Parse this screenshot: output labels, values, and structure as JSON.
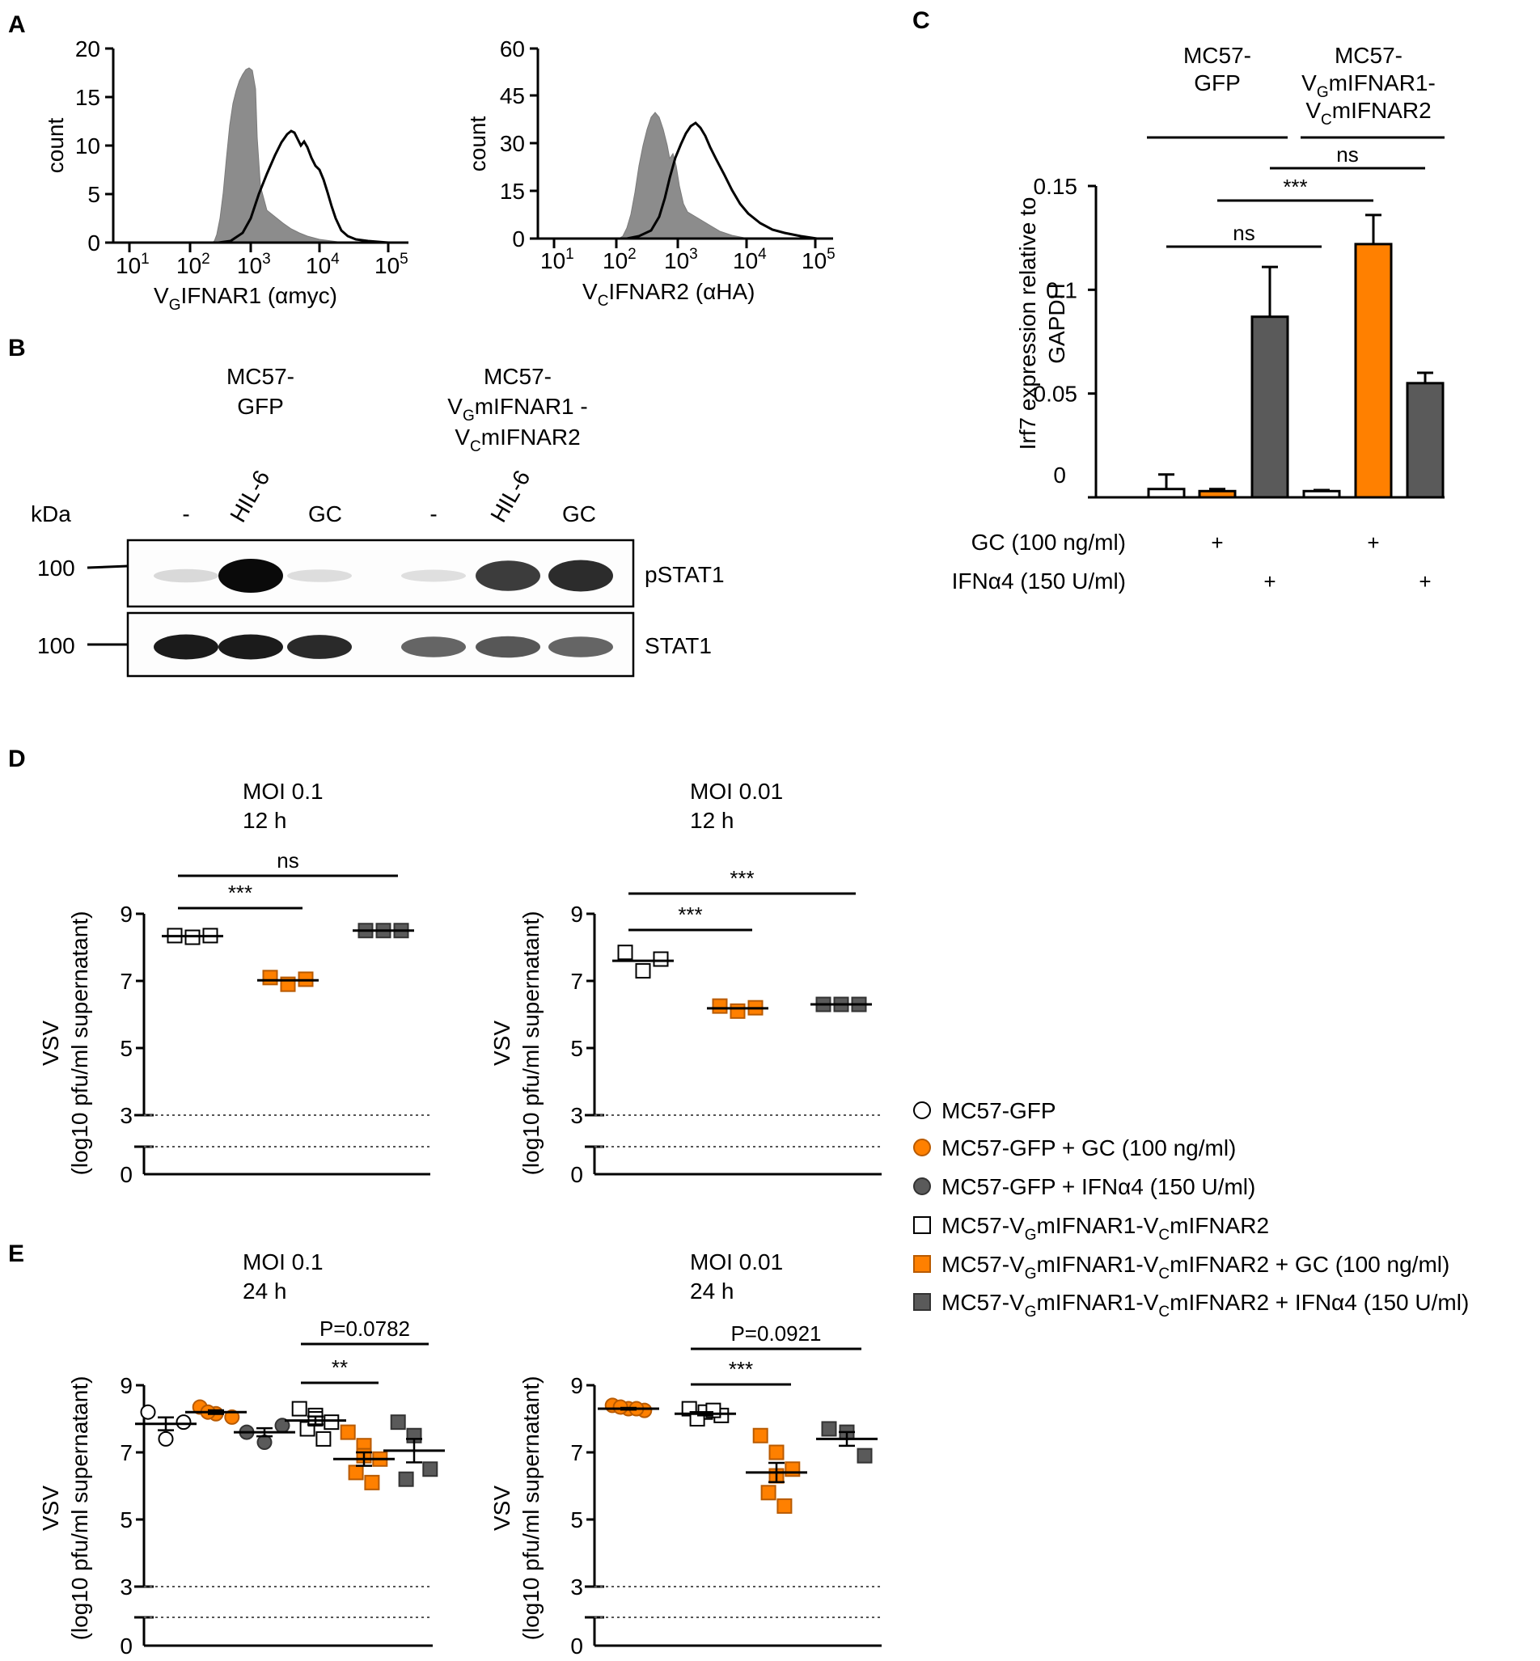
{
  "colors": {
    "orange": "#ff8000",
    "gray": "#5a5a5a",
    "fill_gray": "#8c8c8c",
    "black": "#000000"
  },
  "panels": {
    "A": "A",
    "B": "B",
    "C": "C",
    "D": "D",
    "E": "E"
  },
  "panelA": {
    "left": {
      "ylabel": "count",
      "yticks": [
        "0",
        "5",
        "10",
        "15",
        "20"
      ],
      "xticks": [
        "1",
        "2",
        "3",
        "4",
        "5"
      ],
      "xbase": "10",
      "xlabel_pre": "V",
      "xlabel_sub": "G",
      "xlabel_post": "IFNAR1 (αmyc)"
    },
    "right": {
      "ylabel": "count",
      "yticks": [
        "0",
        "15",
        "30",
        "45",
        "60"
      ],
      "xticks": [
        "1",
        "2",
        "3",
        "4",
        "5"
      ],
      "xbase": "10",
      "xlabel_pre": "V",
      "xlabel_sub": "C",
      "xlabel_post": "IFNAR2 (αHA)"
    }
  },
  "panelB": {
    "group1_l1": "MC57-",
    "group1_l2": "GFP",
    "group2_l1": "MC57-",
    "group2_l2_pre": "V",
    "group2_l2_sub": "G",
    "group2_l2_post": "mIFNAR1 -",
    "group2_l3_pre": "V",
    "group2_l3_sub": "C",
    "group2_l3_post": "mIFNAR2",
    "kda": "kDa",
    "lanes": [
      "-",
      "HIL-6",
      "GC",
      "-",
      "HIL-6",
      "GC"
    ],
    "mw1": "100",
    "mw2": "100",
    "band1": "pSTAT1",
    "band2": "STAT1",
    "pstat1_intensity": [
      0.15,
      1.0,
      0.12,
      0.1,
      0.85,
      0.9
    ],
    "stat1_intensity": [
      0.95,
      0.95,
      0.9,
      0.7,
      0.75,
      0.7
    ]
  },
  "chart_data": [
    {
      "type": "bar",
      "panel": "C",
      "ylabel_l1": "Irf7 expression relative to",
      "ylabel_l2": "GAPDH",
      "ylim": [
        0,
        0.15
      ],
      "yticks": [
        "0",
        "0.05",
        "0.1",
        "0.15"
      ],
      "groups": [
        {
          "l1": "MC57-",
          "l2": "GFP"
        },
        {
          "l1": "MC57-",
          "l2_pre": "V",
          "l2_sub": "G",
          "l2_post": "mIFNAR1-",
          "l3_pre": "V",
          "l3_sub": "C",
          "l3_post": "mIFNAR2"
        }
      ],
      "bars": [
        {
          "value": 0.004,
          "error": 0.007,
          "fill": "white"
        },
        {
          "value": 0.003,
          "error": 0.001,
          "fill": "orange"
        },
        {
          "value": 0.087,
          "error": 0.024,
          "fill": "gray"
        },
        {
          "value": 0.003,
          "error": 0.0005,
          "fill": "white"
        },
        {
          "value": 0.122,
          "error": 0.014,
          "fill": "orange"
        },
        {
          "value": 0.055,
          "error": 0.005,
          "fill": "gray"
        }
      ],
      "conditions": [
        {
          "label": "GC (100 ng/ml)",
          "marks": [
            "",
            "+",
            "",
            "",
            "+",
            ""
          ]
        },
        {
          "label": "IFNα4 (150 U/ml)",
          "marks": [
            "",
            "",
            "+",
            "",
            "",
            "+"
          ]
        }
      ],
      "significance": [
        {
          "from": 0,
          "to": 3,
          "label": "ns"
        },
        {
          "from": 1,
          "to": 4,
          "label": "***"
        },
        {
          "from": 2,
          "to": 5,
          "label": "ns"
        }
      ]
    },
    {
      "type": "scatter",
      "panel": "D-left",
      "title_l1": "MOI 0.1",
      "title_l2": "12 h",
      "ylabel_l1": "VSV",
      "ylabel_l2": "(log10 pfu/ml supernatant)",
      "yticks": [
        "0",
        "3",
        "5",
        "7",
        "9"
      ],
      "groups": [
        {
          "x": 0,
          "marker": "square",
          "fill": "white",
          "values": [
            8.35,
            8.3,
            8.35
          ]
        },
        {
          "x": 1,
          "marker": "square",
          "fill": "orange",
          "values": [
            7.1,
            6.9,
            7.05
          ]
        },
        {
          "x": 2,
          "marker": "square",
          "fill": "gray",
          "values": [
            8.5,
            8.5,
            8.5
          ]
        }
      ],
      "significance": [
        {
          "from": 0,
          "to": 2,
          "label": "ns"
        },
        {
          "from": 0,
          "to": 1,
          "label": "***"
        }
      ]
    },
    {
      "type": "scatter",
      "panel": "D-right",
      "title_l1": "MOI 0.01",
      "title_l2": "12 h",
      "ylabel_l1": "VSV",
      "ylabel_l2": "(log10 pfu/ml supernatant)",
      "yticks": [
        "0",
        "3",
        "5",
        "7",
        "9"
      ],
      "groups": [
        {
          "x": 0,
          "marker": "square",
          "fill": "white",
          "values": [
            7.85,
            7.3,
            7.65
          ]
        },
        {
          "x": 1,
          "marker": "square",
          "fill": "orange",
          "values": [
            6.25,
            6.1,
            6.2
          ]
        },
        {
          "x": 2,
          "marker": "square",
          "fill": "gray",
          "values": [
            6.3,
            6.3,
            6.3
          ]
        }
      ],
      "significance": [
        {
          "from": 0,
          "to": 2,
          "label": "***"
        },
        {
          "from": 0,
          "to": 1,
          "label": "***"
        }
      ]
    },
    {
      "type": "scatter",
      "panel": "E-left",
      "title_l1": "MOI 0.1",
      "title_l2": "24 h",
      "ylabel_l1": "VSV",
      "ylabel_l2": "(log10 pfu/ml supernatant)",
      "yticks": [
        "0",
        "3",
        "5",
        "7",
        "9"
      ],
      "groups": [
        {
          "x": 0,
          "marker": "circle",
          "fill": "white",
          "values": [
            8.2,
            7.4,
            7.9
          ]
        },
        {
          "x": 1,
          "marker": "circle",
          "fill": "orange",
          "values": [
            8.35,
            8.15,
            8.05,
            8.2
          ]
        },
        {
          "x": 2,
          "marker": "circle",
          "fill": "gray",
          "values": [
            7.6,
            7.3,
            7.8
          ]
        },
        {
          "x": 3,
          "marker": "square",
          "fill": "white",
          "values": [
            8.3,
            8.1,
            7.9,
            7.7,
            7.4,
            8.0
          ]
        },
        {
          "x": 4,
          "marker": "square",
          "fill": "orange",
          "values": [
            7.6,
            7.2,
            6.8,
            6.4,
            6.1,
            6.9
          ]
        },
        {
          "x": 5,
          "marker": "square",
          "fill": "gray",
          "values": [
            7.9,
            7.5,
            6.5,
            6.2
          ]
        }
      ],
      "means": [
        7.85,
        8.2,
        7.6,
        7.95,
        6.8,
        7.05
      ],
      "significance": [
        {
          "from": 3,
          "to": 5,
          "label": "P=0.0782"
        },
        {
          "from": 3,
          "to": 4,
          "label": "**"
        }
      ]
    },
    {
      "type": "scatter",
      "panel": "E-right",
      "title_l1": "MOI 0.01",
      "title_l2": "24 h",
      "ylabel_l1": "VSV",
      "ylabel_l2": "(log10 pfu/ml supernatant)",
      "yticks": [
        "0",
        "3",
        "5",
        "7",
        "9"
      ],
      "groups": [
        {
          "x": 0,
          "marker": "circle",
          "fill": "orange",
          "values": [
            8.4,
            8.3,
            8.25,
            8.35,
            8.3
          ]
        },
        {
          "x": 1,
          "marker": "square",
          "fill": "white",
          "values": [
            8.3,
            8.2,
            8.1,
            8.0,
            8.25
          ]
        },
        {
          "x": 2,
          "marker": "square",
          "fill": "orange",
          "values": [
            7.5,
            7.0,
            6.5,
            5.8,
            5.4,
            6.3
          ]
        },
        {
          "x": 3,
          "marker": "square",
          "fill": "gray",
          "values": [
            7.7,
            7.6,
            6.9
          ]
        }
      ],
      "means": [
        8.3,
        8.15,
        6.4,
        7.4
      ],
      "significance": [
        {
          "from": 1,
          "to": 3,
          "label": "P=0.0921"
        },
        {
          "from": 1,
          "to": 2,
          "label": "***"
        }
      ]
    }
  ],
  "legend": [
    {
      "marker": "circle",
      "fill": "white",
      "pre": "MC57-GFP"
    },
    {
      "marker": "circle",
      "fill": "orange",
      "pre": "MC57-GFP + GC (100 ng/ml)"
    },
    {
      "marker": "circle",
      "fill": "gray",
      "pre": "MC57-GFP + IFNα4 (150 U/ml)"
    },
    {
      "marker": "square",
      "fill": "white",
      "pre": "MC57-V",
      "sub1": "G",
      "mid": "mIFNAR1-V",
      "sub2": "C",
      "post": "mIFNAR2"
    },
    {
      "marker": "square",
      "fill": "orange",
      "pre": "MC57-V",
      "sub1": "G",
      "mid": "mIFNAR1-V",
      "sub2": "C",
      "post": "mIFNAR2 + GC (100 ng/ml)"
    },
    {
      "marker": "square",
      "fill": "gray",
      "pre": "MC57-V",
      "sub1": "G",
      "mid": "mIFNAR1-V",
      "sub2": "C",
      "post": "mIFNAR2 + IFNα4 (150 U/ml)"
    }
  ]
}
